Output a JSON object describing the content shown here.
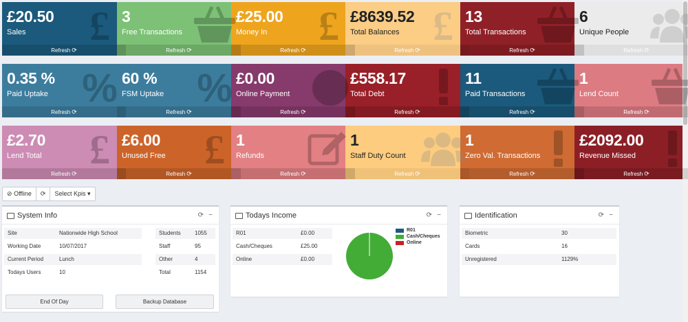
{
  "tiles": [
    {
      "value": "£20.50",
      "label": "Sales",
      "refresh": "Refresh",
      "bg": "#1b5a7c",
      "icon": "pound-icon"
    },
    {
      "value": "3",
      "label": "Free Transactions",
      "refresh": "Refresh",
      "bg": "#7cc176",
      "icon": "basket-icon"
    },
    {
      "value": "£25.00",
      "label": "Money In",
      "refresh": "Refresh",
      "bg": "#eea51d",
      "icon": "pound-icon"
    },
    {
      "value": "£8639.52",
      "label": "Total Balances",
      "refresh": "Refresh",
      "bg": "#fbcd85",
      "icon": "pound-icon"
    },
    {
      "value": "13",
      "label": "Total Transactions",
      "refresh": "Refresh",
      "bg": "#902027",
      "icon": "basket-icon"
    },
    {
      "value": "6",
      "label": "Unique People",
      "refresh": "Refresh",
      "bg": "#ebebeb",
      "icon": "users-icon"
    },
    {
      "value": "0.35 %",
      "label": "Paid Uptake",
      "refresh": "Refresh",
      "bg": "#3c7d9e",
      "icon": "percent-icon"
    },
    {
      "value": "60 %",
      "label": "FSM Uptake",
      "refresh": "Refresh",
      "bg": "#3c7d9e",
      "icon": "percent-icon"
    },
    {
      "value": "£0.00",
      "label": "Online Payment",
      "refresh": "Refresh",
      "bg": "#873a6c",
      "icon": "globe-icon"
    },
    {
      "value": "£558.17",
      "label": "Total Debt",
      "refresh": "Refresh",
      "bg": "#992028",
      "icon": "exclamation-icon"
    },
    {
      "value": "11",
      "label": "Paid Transactions",
      "refresh": "Refresh",
      "bg": "#1b5a7c",
      "icon": "basket-icon"
    },
    {
      "value": "1",
      "label": "Lend Count",
      "refresh": "Refresh",
      "bg": "#dd7b82",
      "icon": "basket-icon"
    },
    {
      "value": "£2.70",
      "label": "Lend Total",
      "refresh": "Refresh",
      "bg": "#cd8cb4",
      "icon": "pound-icon"
    },
    {
      "value": "£6.00",
      "label": "Unused Free",
      "refresh": "Refresh",
      "bg": "#cc642a",
      "icon": "pound-icon"
    },
    {
      "value": "1",
      "label": "Refunds",
      "refresh": "Refresh",
      "bg": "#e38083",
      "icon": "edit-icon"
    },
    {
      "value": "1",
      "label": "Staff Duty Count",
      "refresh": "Refresh",
      "bg": "#fdcc7f",
      "icon": "users-icon"
    },
    {
      "value": "1",
      "label": "Zero Val. Transactions",
      "refresh": "Refresh",
      "bg": "#cf6b33",
      "icon": "exclamation-icon"
    },
    {
      "value": "£2092.00",
      "label": "Revenue Missed",
      "refresh": "Refresh",
      "bg": "#8c1f26",
      "icon": "exclamation-icon"
    }
  ],
  "toolbar": {
    "offline_label": "Offline",
    "select_kpis_label": "Select Kpis"
  },
  "system_info": {
    "title": "System Info",
    "left_rows": [
      {
        "label": "Site",
        "value": "Nationwide High School"
      },
      {
        "label": "Working Date",
        "value": "10/07/2017"
      },
      {
        "label": "Current Period",
        "value": "Lunch"
      },
      {
        "label": "Todays Users",
        "value": "10"
      }
    ],
    "right_rows": [
      {
        "label": "Students",
        "value": "1055"
      },
      {
        "label": "Staff",
        "value": "95"
      },
      {
        "label": "Other",
        "value": "4"
      },
      {
        "label": "Total",
        "value": "1154"
      }
    ],
    "end_of_day_label": "End Of Day",
    "backup_label": "Backup Database"
  },
  "todays_income": {
    "title": "Todays Income",
    "rows": [
      {
        "label": "R01",
        "value": "£0.00"
      },
      {
        "label": "Cash/Cheques",
        "value": "£25.00"
      },
      {
        "label": "Online",
        "value": "£0.00"
      }
    ]
  },
  "identification": {
    "title": "Identification",
    "rows": [
      {
        "label": "Biometric",
        "value": "30"
      },
      {
        "label": "Cards",
        "value": "16"
      },
      {
        "label": "Unregistered",
        "value": "1129%"
      }
    ]
  },
  "chart_data": {
    "type": "pie",
    "categories": [
      "R01",
      "Cash/Cheques",
      "Online"
    ],
    "values": [
      0,
      25,
      0
    ],
    "colors": [
      "#1f5a7d",
      "#43ac36",
      "#cc1f26"
    ],
    "legend": "top-right"
  }
}
